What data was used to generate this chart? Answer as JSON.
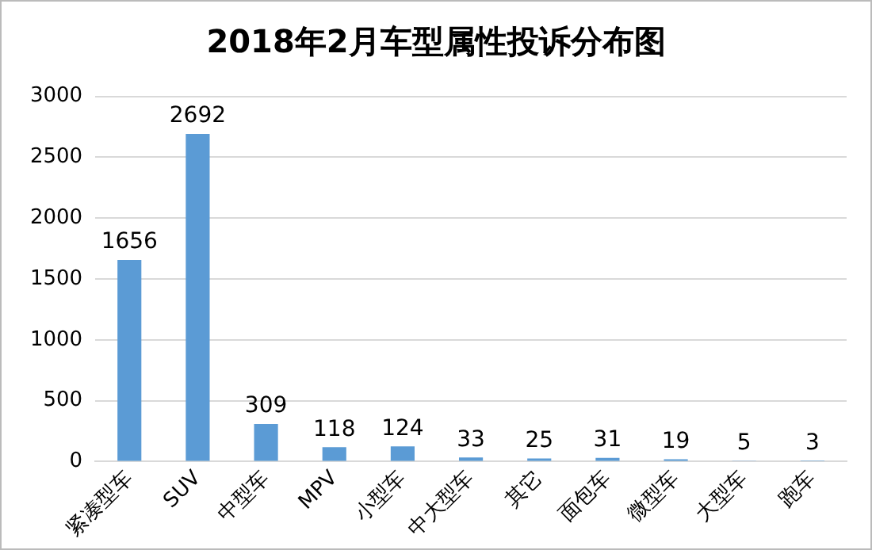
{
  "chart_data": {
    "type": "bar",
    "title": "2018年2月车型属性投诉分布图",
    "categories": [
      "紧凑型车",
      "SUV",
      "中型车",
      "MPV",
      "小型车",
      "中大型车",
      "其它",
      "面包车",
      "微型车",
      "大型车",
      "跑车"
    ],
    "values": [
      1656,
      2692,
      309,
      118,
      124,
      33,
      25,
      31,
      19,
      5,
      3
    ],
    "color": "#5b9bd5",
    "ylim": [
      0,
      3000
    ],
    "yticks": [
      0,
      500,
      1000,
      1500,
      2000,
      2500,
      3000
    ],
    "grid": "y",
    "data_labels": true
  }
}
